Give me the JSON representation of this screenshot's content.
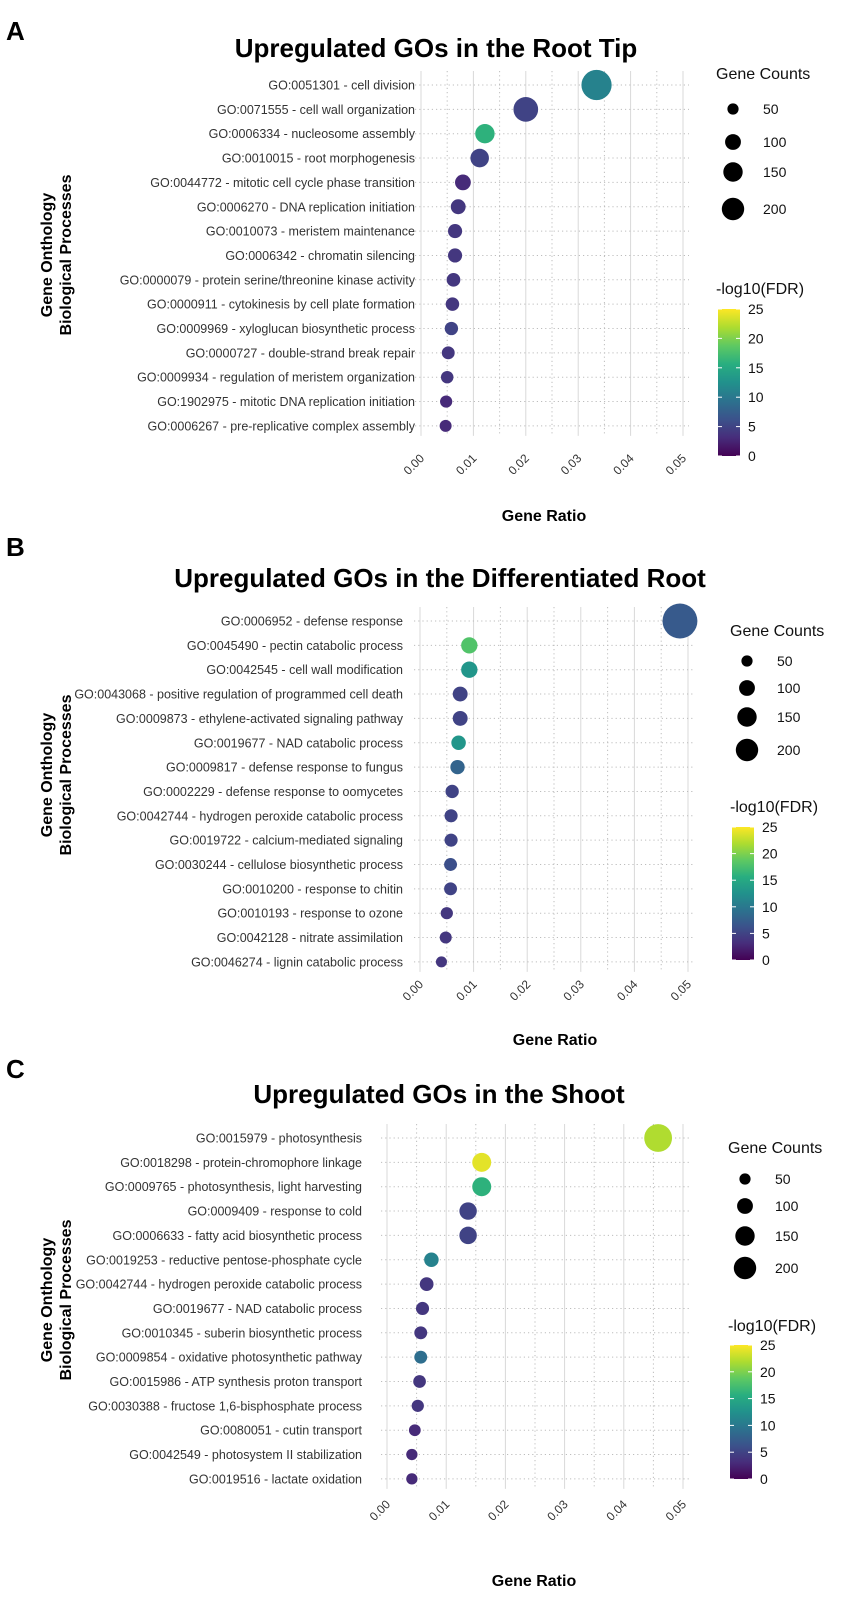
{
  "x_axis_label": "Gene Ratio",
  "y_axis_label_line1": "Gene Onthology",
  "y_axis_label_line2": "Biological Processes",
  "size_legend": {
    "title": "Gene Counts",
    "values": [
      50,
      100,
      150,
      200
    ],
    "labels": [
      "50",
      "100",
      "150",
      "200"
    ]
  },
  "color_legend": {
    "title": "-log10(FDR)",
    "range": [
      0,
      25
    ],
    "ticks": [
      0,
      5,
      10,
      15,
      20,
      25
    ],
    "tick_labels": [
      "0",
      "5",
      "10",
      "15",
      "20",
      "25"
    ]
  },
  "colors": {
    "viridis_start": "#440154",
    "viridis_end": "#fde725"
  },
  "chart_data": [
    {
      "type": "scatter",
      "panel_label": "A",
      "title": "Upregulated GOs in the Root Tip",
      "xlabel": "Gene Ratio",
      "ylabel": "Gene Onthology Biological Processes",
      "xlim": [
        0,
        0.05
      ],
      "x_ticks": [
        0,
        0.01,
        0.02,
        0.03,
        0.04,
        0.05
      ],
      "x_tick_labels": [
        "0.00",
        "0.01",
        "0.02",
        "0.03",
        "0.04",
        "0.05"
      ],
      "categories": [
        "GO:0051301 - cell division",
        "GO:0071555 - cell wall organization",
        "GO:0006334 - nucleosome assembly",
        "GO:0010015 - root morphogenesis",
        "GO:0044772 - mitotic cell cycle phase transition",
        "GO:0006270 - DNA replication initiation",
        "GO:0010073 - meristem maintenance",
        "GO:0006342 - chromatin silencing",
        "GO:0000079 - protein serine/threonine kinase activity",
        "GO:0000911 - cytokinesis by cell plate formation",
        "GO:0009969 - xyloglucan biosynthetic process",
        "GO:0000727 - double-strand break repair",
        "GO:0009934 - regulation of meristem organization",
        "GO:1902975 - mitotic DNA replication initiation",
        "GO:0006267 - pre-replicative complex assembly"
      ],
      "gene_ratio": [
        0.0335,
        0.02,
        0.0122,
        0.0112,
        0.008,
        0.0071,
        0.0065,
        0.0065,
        0.0062,
        0.006,
        0.0058,
        0.0052,
        0.005,
        0.0048,
        0.0047
      ],
      "gene_counts": [
        165,
        110,
        68,
        62,
        45,
        40,
        36,
        36,
        34,
        33,
        32,
        30,
        28,
        27,
        26
      ],
      "neg_log10_fdr": [
        11,
        5,
        16,
        5,
        3,
        4,
        4,
        4,
        4,
        4,
        5,
        4,
        4,
        3,
        3
      ]
    },
    {
      "type": "scatter",
      "panel_label": "B",
      "title": "Upregulated GOs in the Differentiated Root",
      "xlabel": "Gene Ratio",
      "ylabel": "Gene Onthology Biological Processes",
      "xlim": [
        0,
        0.05
      ],
      "x_ticks": [
        0,
        0.01,
        0.02,
        0.03,
        0.04,
        0.05
      ],
      "x_tick_labels": [
        "0.00",
        "0.01",
        "0.02",
        "0.03",
        "0.04",
        "0.05"
      ],
      "categories": [
        "GO:0006952 - defense response",
        "GO:0045490 - pectin catabolic process",
        "GO:0042545 - cell wall modification",
        "GO:0043068 - positive regulation of programmed cell death",
        "GO:0009873 - ethylene-activated signaling pathway",
        "GO:0019677 - NAD catabolic process",
        "GO:0009817 - defense response to fungus",
        "GO:0002229 - defense response to oomycetes",
        "GO:0042744 - hydrogen peroxide catabolic process",
        "GO:0019722 - calcium-mediated signaling",
        "GO:0030244 - cellulose biosynthetic process",
        "GO:0010200 - response to chitin",
        "GO:0010193 - response to ozone",
        "GO:0042128 - nitrate assimilation",
        "GO:0046274 - lignin catabolic process"
      ],
      "gene_ratio": [
        0.0485,
        0.0092,
        0.0092,
        0.0075,
        0.0075,
        0.0072,
        0.007,
        0.006,
        0.0058,
        0.0058,
        0.0057,
        0.0057,
        0.005,
        0.0048,
        0.004
      ],
      "gene_counts": [
        220,
        48,
        48,
        40,
        40,
        38,
        37,
        32,
        31,
        31,
        30,
        30,
        27,
        26,
        22
      ],
      "neg_log10_fdr": [
        7,
        18,
        13,
        5,
        5,
        13,
        8,
        5,
        5,
        5,
        6,
        5,
        4,
        4,
        4
      ]
    },
    {
      "type": "scatter",
      "panel_label": "C",
      "title": "Upregulated GOs in the Shoot",
      "xlabel": "Gene Ratio",
      "ylabel": "Gene Onthology Biological Processes",
      "xlim": [
        0,
        0.05
      ],
      "x_ticks": [
        0,
        0.01,
        0.02,
        0.03,
        0.04,
        0.05
      ],
      "x_tick_labels": [
        "0.00",
        "0.01",
        "0.02",
        "0.03",
        "0.04",
        "0.05"
      ],
      "categories": [
        "GO:0015979 - photosynthesis",
        "GO:0018298 - protein-chromophore linkage",
        "GO:0009765 - photosynthesis, light harvesting",
        "GO:0009409 - response to cold",
        "GO:0006633 - fatty acid biosynthetic process",
        "GO:0019253 - reductive pentose-phosphate cycle",
        "GO:0042744 - hydrogen peroxide catabolic process",
        "GO:0019677 - NAD catabolic process",
        "GO:0010345 - suberin biosynthetic process",
        "GO:0009854 - oxidative photosynthetic pathway",
        "GO:0015986 - ATP synthesis proton transport",
        "GO:0030388 - fructose 1,6-bisphosphate process",
        "GO:0080051 - cutin transport",
        "GO:0042549 - photosystem II stabilization",
        "GO:0019516 - lactate oxidation"
      ],
      "gene_ratio": [
        0.0458,
        0.016,
        0.016,
        0.0137,
        0.0137,
        0.0075,
        0.0067,
        0.006,
        0.0057,
        0.0057,
        0.0055,
        0.0052,
        0.0047,
        0.0042,
        0.0042
      ],
      "gene_counts": [
        140,
        65,
        65,
        55,
        55,
        38,
        34,
        31,
        30,
        30,
        29,
        27,
        25,
        23,
        23
      ],
      "neg_log10_fdr": [
        22,
        24,
        16,
        5,
        5,
        11,
        4,
        4,
        4,
        9,
        4,
        4,
        3,
        3,
        3
      ]
    }
  ]
}
